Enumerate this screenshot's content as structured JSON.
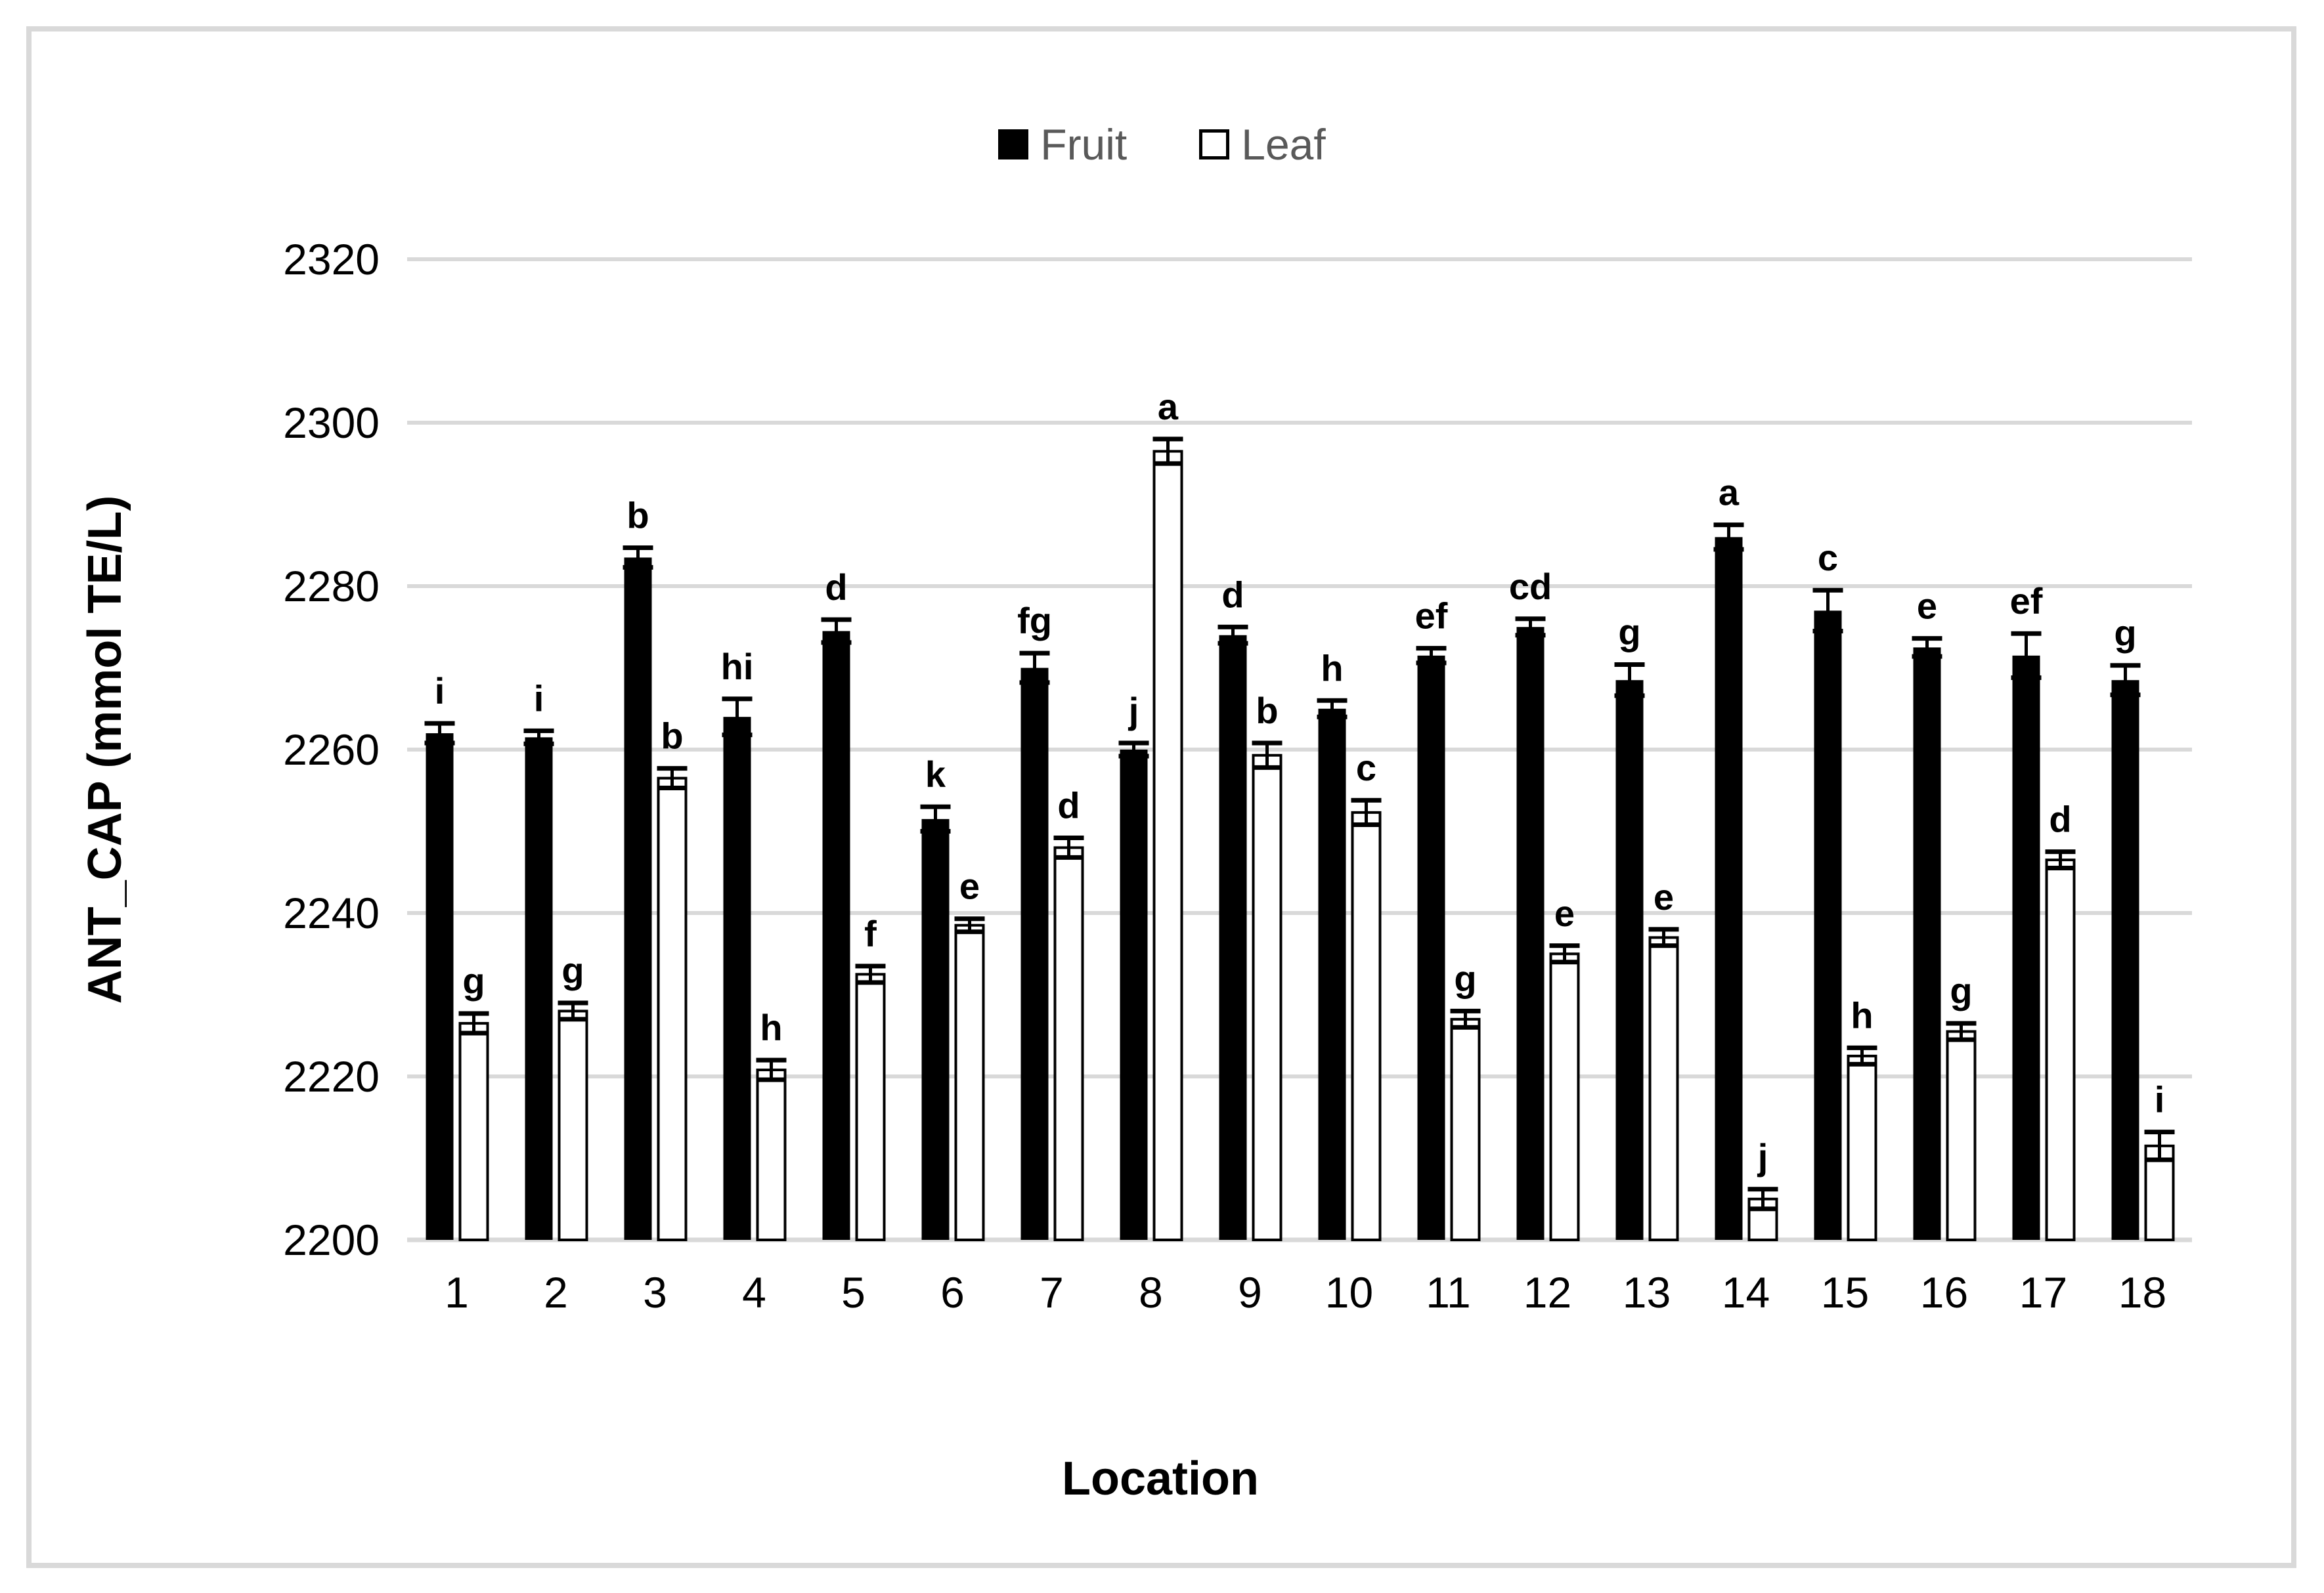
{
  "figure": {
    "background": "#ffffff",
    "border_color": "#d9d9d9",
    "gridline_color": "#d9d9d9",
    "legend_text_color": "#595959",
    "bar_fill_fruit": "#000000",
    "bar_fill_leaf": "#ffffff",
    "bar_stroke_leaf": "#000000"
  },
  "legend": {
    "items": [
      {
        "label": "Fruit",
        "swatch": "filled-black-square"
      },
      {
        "label": "Leaf",
        "swatch": "outlined-white-square"
      }
    ]
  },
  "chart_data": {
    "type": "bar",
    "title": "",
    "xlabel": "Location",
    "ylabel": "ANT_CAP (mmol TE/L)",
    "ylim": [
      2200,
      2320
    ],
    "yticks": [
      2200,
      2220,
      2240,
      2260,
      2280,
      2300,
      2320
    ],
    "grid": true,
    "legend_position": "top-center",
    "error_bars": true,
    "categories": [
      "1",
      "2",
      "3",
      "4",
      "5",
      "6",
      "7",
      "8",
      "9",
      "10",
      "11",
      "12",
      "13",
      "14",
      "15",
      "16",
      "17",
      "18"
    ],
    "series": [
      {
        "name": "Fruit",
        "style": "solid-black",
        "values": [
          2262,
          2261.5,
          2283.5,
          2264,
          2274.5,
          2251.5,
          2270,
          2260,
          2274,
          2265,
          2271.5,
          2275,
          2268.5,
          2286,
          2277,
          2272.5,
          2271.5,
          2268.5
        ],
        "errors": [
          1.2,
          0.8,
          1.2,
          2.2,
          1.4,
          1.5,
          1.8,
          0.8,
          1.0,
          1.0,
          0.9,
          1.0,
          1.9,
          1.5,
          2.5,
          1.1,
          2.7,
          1.8
        ],
        "letters": [
          "i",
          "i",
          "b",
          "hi",
          "d",
          "k",
          "fg",
          "j",
          "d",
          "h",
          "ef",
          "cd",
          "g",
          "a",
          "c",
          "e",
          "ef",
          "g"
        ]
      },
      {
        "name": "Leaf",
        "style": "outlined-white",
        "values": [
          2226.5,
          2228,
          2256.5,
          2220.8,
          2232.5,
          2238.5,
          2248,
          2296.5,
          2259.3,
          2252.3,
          2227,
          2235,
          2237,
          2205,
          2222.5,
          2225.5,
          2246.5,
          2211.5
        ],
        "errors": [
          1.2,
          1.0,
          1.2,
          1.2,
          1.0,
          0.8,
          1.2,
          1.5,
          1.5,
          1.5,
          1.0,
          1.0,
          1.0,
          1.2,
          1.0,
          1.0,
          1.0,
          1.7
        ],
        "letters": [
          "g",
          "g",
          "b",
          "h",
          "f",
          "e",
          "d",
          "a",
          "b",
          "c",
          "g",
          "e",
          "e",
          "j",
          "h",
          "g",
          "d",
          "i"
        ]
      }
    ]
  }
}
